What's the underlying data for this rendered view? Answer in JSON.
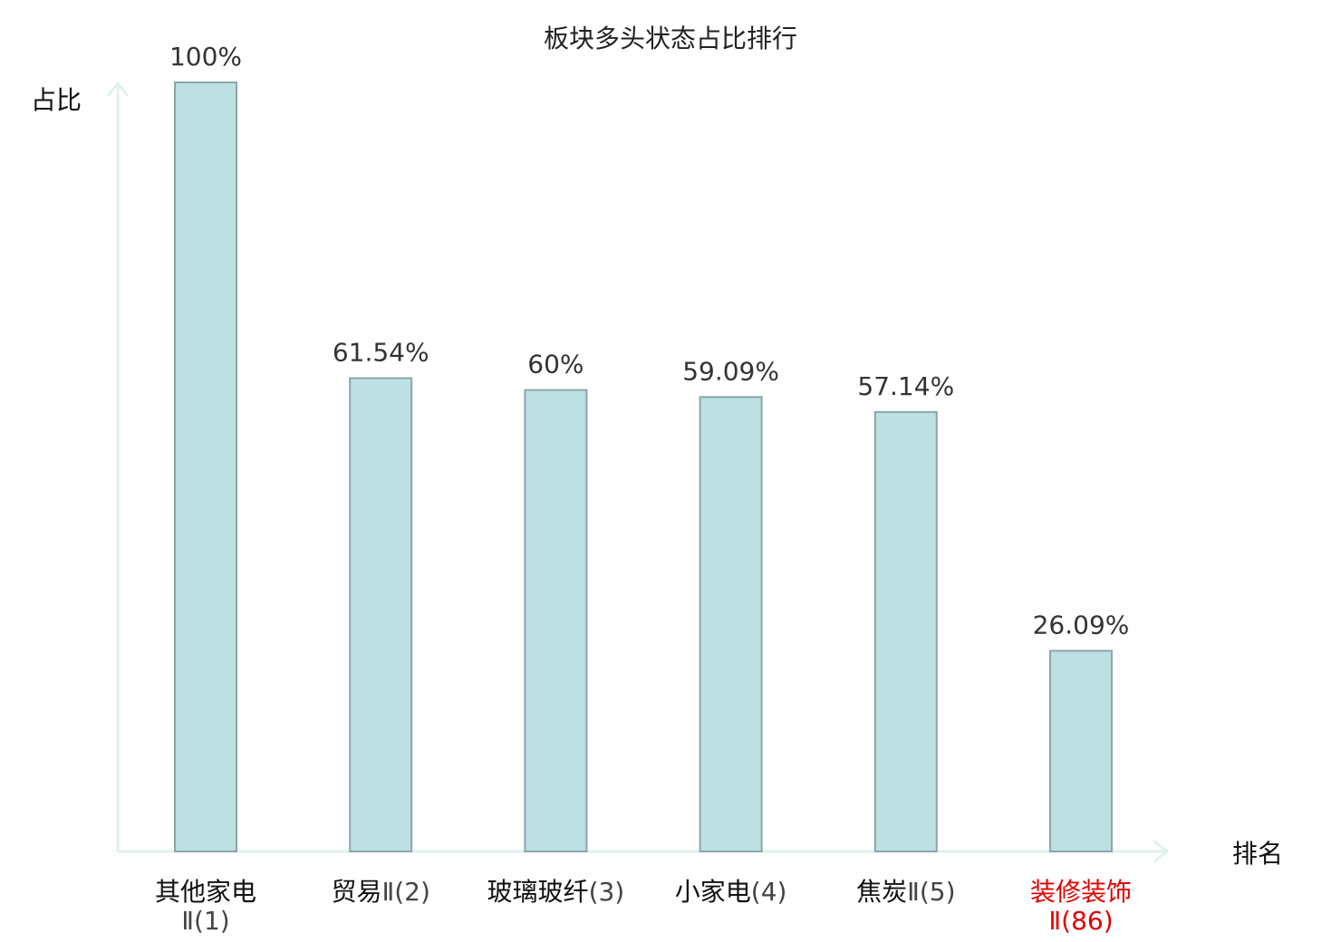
{
  "chart_data": {
    "type": "bar",
    "title": "板块多头状态占比排行",
    "ylabel": "占比",
    "xlabel": "排名",
    "ylim": [
      0,
      100
    ],
    "unit": "%",
    "categories": [
      {
        "name": "其他家电",
        "suffix": "Ⅱ(1)",
        "wrap": true,
        "highlight": false
      },
      {
        "name": "贸易",
        "suffix": "Ⅱ(2)",
        "wrap": false,
        "highlight": false
      },
      {
        "name": "玻璃玻纤",
        "suffix": "(3)",
        "wrap": false,
        "highlight": false
      },
      {
        "name": "小家电",
        "suffix": "(4)",
        "wrap": false,
        "highlight": false
      },
      {
        "name": "焦炭",
        "suffix": "Ⅱ(5)",
        "wrap": false,
        "highlight": false
      },
      {
        "name": "装修装饰",
        "suffix": "Ⅱ(86)",
        "wrap": true,
        "highlight": true
      }
    ],
    "values": [
      100,
      61.54,
      60,
      59.09,
      57.14,
      26.09
    ],
    "value_labels": [
      "100%",
      "61.54%",
      "60%",
      "59.09%",
      "57.14%",
      "26.09%"
    ],
    "colors": {
      "bar_fill": "#bde0e3",
      "bar_stroke": "#8aa7aa",
      "axis": "#dff1ee",
      "highlight": "#e00000"
    },
    "grid": false,
    "legend": "none"
  }
}
